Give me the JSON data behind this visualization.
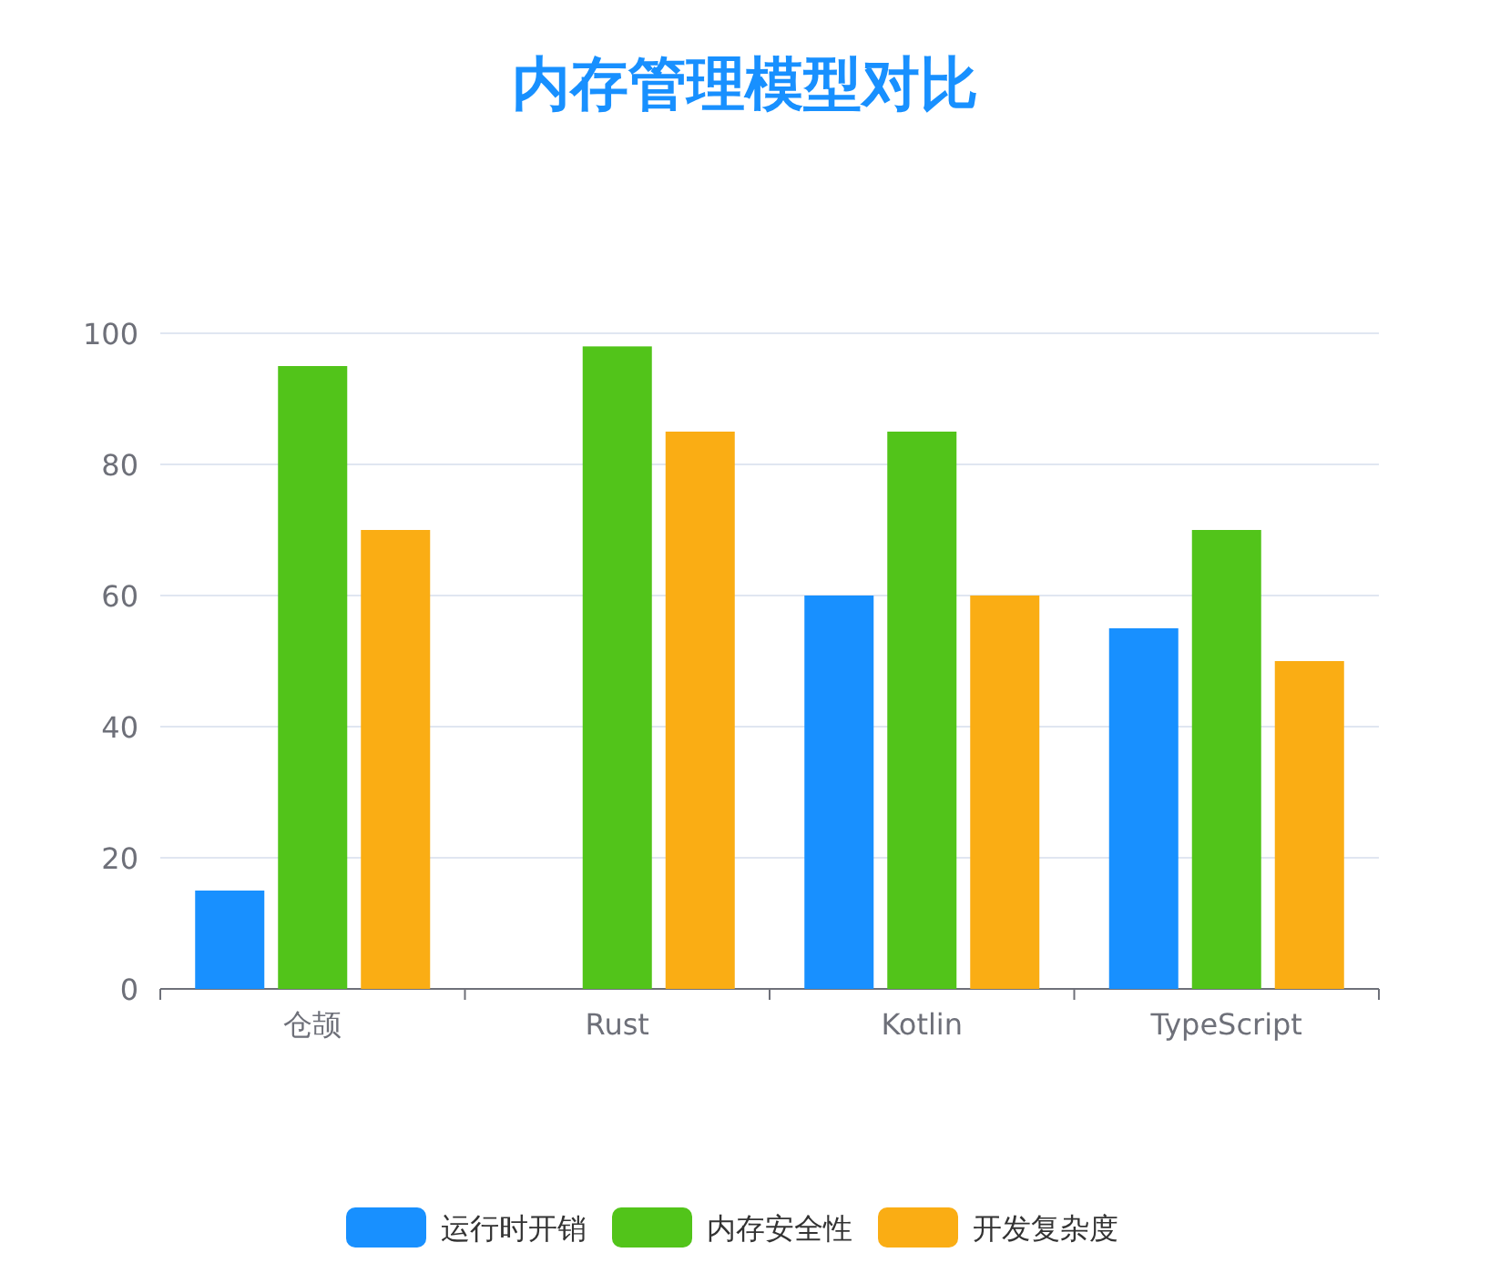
{
  "chart_data": {
    "type": "bar",
    "title": "内存管理模型对比",
    "categories": [
      "仓颉",
      "Rust",
      "Kotlin",
      "TypeScript"
    ],
    "series": [
      {
        "name": "运行时开销",
        "color": "#1890ff",
        "values": [
          15,
          null,
          60,
          55
        ]
      },
      {
        "name": "内存安全性",
        "color": "#52c41a",
        "values": [
          95,
          98,
          85,
          70
        ]
      },
      {
        "name": "开发复杂度",
        "color": "#faad14",
        "values": [
          70,
          85,
          60,
          50
        ]
      }
    ],
    "ylim": [
      0,
      100
    ],
    "yticks": [
      0,
      20,
      40,
      60,
      80,
      100
    ],
    "grid": "y",
    "legend": "bottom"
  }
}
